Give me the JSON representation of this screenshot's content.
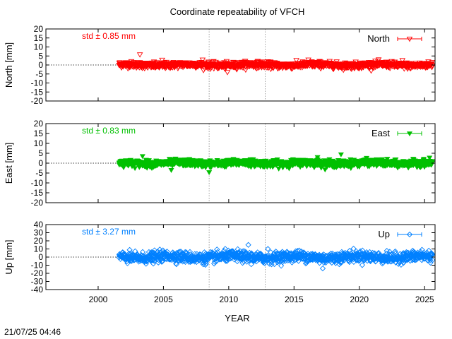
{
  "title": "Coordinate repeatability of VFCH",
  "timestamp": "21/07/25 04:46",
  "xlabel": "YEAR",
  "x_ticks": [
    2000,
    2005,
    2010,
    2015,
    2020,
    2025
  ],
  "x_range": [
    1996.0,
    2025.8
  ],
  "vlines": [
    2008.5,
    2012.8
  ],
  "colors": {
    "north": "#ff0000",
    "east": "#00c000",
    "up": "#0080ff"
  },
  "chart_data": [
    {
      "type": "scatter",
      "name": "north",
      "ylabel": "North [mm]",
      "ylim": [
        -20,
        20
      ],
      "yticks": [
        -20,
        -15,
        -10,
        -5,
        0,
        5,
        10,
        15,
        20
      ],
      "std_label": "std ± 0.85 mm",
      "legend": "North",
      "marker": "triangle-down-open",
      "data_start": 2001.6,
      "data_end": 2025.6,
      "std_mm": 0.85,
      "outliers": [
        [
          2003.2,
          5.8
        ],
        [
          2004.9,
          2.8
        ],
        [
          2008.0,
          2.9
        ],
        [
          2009.9,
          -4.0
        ],
        [
          2016.1,
          2.9
        ],
        [
          2023.3,
          2.6
        ]
      ]
    },
    {
      "type": "scatter",
      "name": "east",
      "ylabel": "East [mm]",
      "ylim": [
        -20,
        20
      ],
      "yticks": [
        -20,
        -15,
        -10,
        -5,
        0,
        5,
        10,
        15,
        20
      ],
      "std_label": "std ± 0.83 mm",
      "legend": "East",
      "marker": "triangle-down-filled",
      "data_start": 2001.6,
      "data_end": 2025.6,
      "std_mm": 0.83,
      "outliers": [
        [
          2003.4,
          3.5
        ],
        [
          2008.5,
          -4.6
        ],
        [
          2005.6,
          -3.5
        ],
        [
          2018.6,
          4.4
        ],
        [
          2016.8,
          3.0
        ]
      ]
    },
    {
      "type": "scatter",
      "name": "up",
      "ylabel": "Up [mm]",
      "ylim": [
        -40,
        40
      ],
      "yticks": [
        -40,
        -30,
        -20,
        -10,
        0,
        10,
        20,
        30,
        40
      ],
      "std_label": "std ± 3.27 mm",
      "legend": "Up",
      "marker": "diamond-open",
      "data_start": 2001.6,
      "data_end": 2025.6,
      "std_mm": 3.27,
      "outliers": [
        [
          2011.5,
          15.0
        ],
        [
          2017.2,
          -14.0
        ],
        [
          2013.0,
          10.0
        ],
        [
          2024.8,
          9.0
        ]
      ]
    }
  ]
}
